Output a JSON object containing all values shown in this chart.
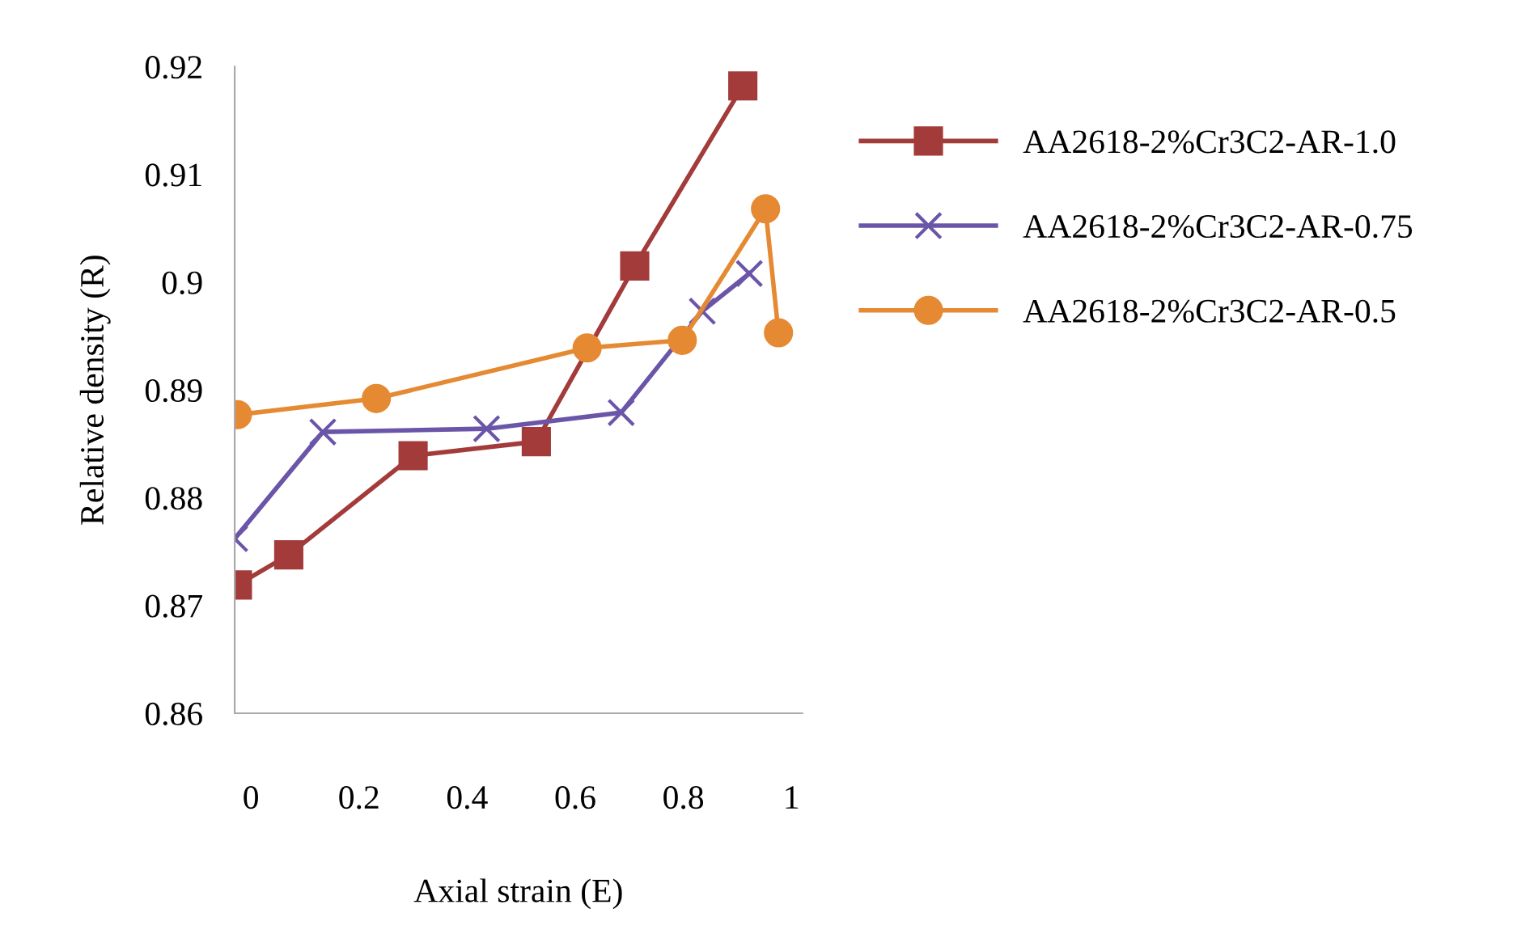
{
  "chart_data": {
    "type": "line",
    "xlabel": "Axial strain (E)",
    "ylabel": "Relative density (R)",
    "xlim": [
      -0.03,
      1.02
    ],
    "ylim": [
      0.86,
      0.92
    ],
    "xticks": [
      0,
      0.2,
      0.4,
      0.6,
      0.8,
      1
    ],
    "yticks": [
      0.86,
      0.87,
      0.88,
      0.89,
      0.9,
      0.91,
      0.92
    ],
    "grid": false,
    "legend": "right",
    "series": [
      {
        "name": "AA2618-2%Cr3C2-AR-1.0",
        "color": "#a33b3b",
        "marker": "square",
        "x": [
          -0.025,
          0.07,
          0.3,
          0.528,
          0.71,
          0.91
        ],
        "values": [
          0.8719,
          0.8747,
          0.8839,
          0.8852,
          0.9015,
          0.9182
        ]
      },
      {
        "name": "AA2618-2%Cr3C2-AR-0.75",
        "color": "#6a55a8",
        "marker": "cross",
        "x": [
          -0.03,
          0.133,
          0.436,
          0.685,
          0.835,
          0.922
        ],
        "values": [
          0.8762,
          0.8861,
          0.8864,
          0.8879,
          0.8973,
          0.9008
        ]
      },
      {
        "name": "AA2618-2%Cr3C2-AR-0.5",
        "color": "#e58a33",
        "marker": "circle",
        "x": [
          -0.025,
          0.232,
          0.622,
          0.798,
          0.952,
          0.976
        ],
        "values": [
          0.8877,
          0.8892,
          0.8939,
          0.8946,
          0.9068,
          0.8953
        ]
      }
    ]
  }
}
